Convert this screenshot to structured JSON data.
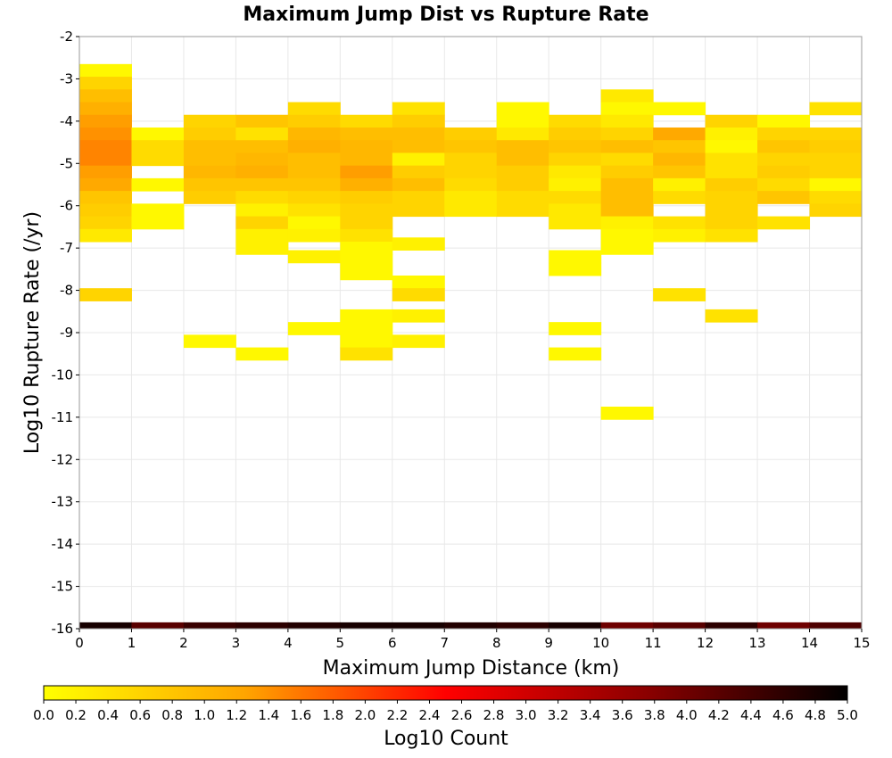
{
  "chart_data": {
    "type": "heatmap",
    "title": "Maximum Jump Dist vs Rupture Rate",
    "xlabel": "Maximum Jump Distance (km)",
    "ylabel": "Log10 Rupture Rate (/yr)",
    "xlim": [
      0,
      15
    ],
    "ylim": [
      -16,
      -2
    ],
    "x_ticks": [
      "0",
      "1",
      "2",
      "3",
      "4",
      "5",
      "6",
      "7",
      "8",
      "9",
      "10",
      "11",
      "12",
      "13",
      "14",
      "15"
    ],
    "y_ticks": [
      "-2",
      "-3",
      "-4",
      "-5",
      "-6",
      "-7",
      "-8",
      "-9",
      "-10",
      "-11",
      "-12",
      "-13",
      "-14",
      "-15",
      "-16"
    ],
    "bin_width_x": 1,
    "bin_height_y": 0.3,
    "grid": true,
    "colorbar": {
      "label": "Log10 Count",
      "range": [
        0,
        5
      ],
      "ticks": [
        "0.0",
        "0.2",
        "0.4",
        "0.6",
        "0.8",
        "1.0",
        "1.2",
        "1.4",
        "1.6",
        "1.8",
        "2.0",
        "2.2",
        "2.4",
        "2.6",
        "2.8",
        "3.0",
        "3.2",
        "3.4",
        "3.6",
        "3.8",
        "4.0",
        "4.2",
        "4.4",
        "4.6",
        "4.8",
        "5.0"
      ],
      "colors": [
        "#ffff00",
        "#ffa500",
        "#ff0000",
        "#8b0000",
        "#000000"
      ],
      "placement": "bottom"
    },
    "cells": [
      {
        "x": 0,
        "y": -2.8,
        "v": 0.1
      },
      {
        "x": 0,
        "y": -3.1,
        "v": 0.6
      },
      {
        "x": 0,
        "y": -3.4,
        "v": 0.9
      },
      {
        "x": 0,
        "y": -3.7,
        "v": 1.1
      },
      {
        "x": 0,
        "y": -4.0,
        "v": 1.3
      },
      {
        "x": 0,
        "y": -4.3,
        "v": 1.4
      },
      {
        "x": 0,
        "y": -4.6,
        "v": 1.5
      },
      {
        "x": 0,
        "y": -4.9,
        "v": 1.5
      },
      {
        "x": 0,
        "y": -5.2,
        "v": 1.3
      },
      {
        "x": 0,
        "y": -5.5,
        "v": 1.2
      },
      {
        "x": 0,
        "y": -5.8,
        "v": 0.8
      },
      {
        "x": 0,
        "y": -6.1,
        "v": 0.7
      },
      {
        "x": 0,
        "y": -6.4,
        "v": 0.6
      },
      {
        "x": 0,
        "y": -6.7,
        "v": 0.3
      },
      {
        "x": 0,
        "y": -8.1,
        "v": 0.6
      },
      {
        "x": 1,
        "y": -4.3,
        "v": 0.1
      },
      {
        "x": 1,
        "y": -4.6,
        "v": 0.5
      },
      {
        "x": 1,
        "y": -4.9,
        "v": 0.5
      },
      {
        "x": 1,
        "y": -5.5,
        "v": 0.1
      },
      {
        "x": 1,
        "y": -6.1,
        "v": 0.1
      },
      {
        "x": 1,
        "y": -6.4,
        "v": 0.1
      },
      {
        "x": 2,
        "y": -4.0,
        "v": 0.6
      },
      {
        "x": 2,
        "y": -4.3,
        "v": 0.7
      },
      {
        "x": 2,
        "y": -4.6,
        "v": 0.9
      },
      {
        "x": 2,
        "y": -4.9,
        "v": 0.9
      },
      {
        "x": 2,
        "y": -5.2,
        "v": 1.0
      },
      {
        "x": 2,
        "y": -5.5,
        "v": 0.8
      },
      {
        "x": 2,
        "y": -5.8,
        "v": 0.7
      },
      {
        "x": 2,
        "y": -9.2,
        "v": 0.1
      },
      {
        "x": 3,
        "y": -4.0,
        "v": 0.8
      },
      {
        "x": 3,
        "y": -4.3,
        "v": 0.4
      },
      {
        "x": 3,
        "y": -4.6,
        "v": 0.9
      },
      {
        "x": 3,
        "y": -4.9,
        "v": 1.0
      },
      {
        "x": 3,
        "y": -5.2,
        "v": 1.1
      },
      {
        "x": 3,
        "y": -5.5,
        "v": 0.8
      },
      {
        "x": 3,
        "y": -5.8,
        "v": 0.5
      },
      {
        "x": 3,
        "y": -6.1,
        "v": 0.2
      },
      {
        "x": 3,
        "y": -6.4,
        "v": 0.6
      },
      {
        "x": 3,
        "y": -6.7,
        "v": 0.2
      },
      {
        "x": 3,
        "y": -7.0,
        "v": 0.2
      },
      {
        "x": 3,
        "y": -9.5,
        "v": 0.1
      },
      {
        "x": 4,
        "y": -3.7,
        "v": 0.5
      },
      {
        "x": 4,
        "y": -4.0,
        "v": 0.7
      },
      {
        "x": 4,
        "y": -4.3,
        "v": 1.0
      },
      {
        "x": 4,
        "y": -4.6,
        "v": 1.1
      },
      {
        "x": 4,
        "y": -4.9,
        "v": 0.9
      },
      {
        "x": 4,
        "y": -5.2,
        "v": 0.9
      },
      {
        "x": 4,
        "y": -5.5,
        "v": 0.8
      },
      {
        "x": 4,
        "y": -5.8,
        "v": 0.6
      },
      {
        "x": 4,
        "y": -6.1,
        "v": 0.4
      },
      {
        "x": 4,
        "y": -6.4,
        "v": 0.1
      },
      {
        "x": 4,
        "y": -6.7,
        "v": 0.2
      },
      {
        "x": 4,
        "y": -7.2,
        "v": 0.2
      },
      {
        "x": 4,
        "y": -8.9,
        "v": 0.1
      },
      {
        "x": 5,
        "y": -4.0,
        "v": 0.5
      },
      {
        "x": 5,
        "y": -4.3,
        "v": 0.9
      },
      {
        "x": 5,
        "y": -4.6,
        "v": 1.0
      },
      {
        "x": 5,
        "y": -4.9,
        "v": 1.0
      },
      {
        "x": 5,
        "y": -5.2,
        "v": 1.3
      },
      {
        "x": 5,
        "y": -5.5,
        "v": 1.1
      },
      {
        "x": 5,
        "y": -5.8,
        "v": 0.7
      },
      {
        "x": 5,
        "y": -6.1,
        "v": 0.6
      },
      {
        "x": 5,
        "y": -6.4,
        "v": 0.6
      },
      {
        "x": 5,
        "y": -6.7,
        "v": 0.4
      },
      {
        "x": 5,
        "y": -7.0,
        "v": 0.1
      },
      {
        "x": 5,
        "y": -7.3,
        "v": 0.1
      },
      {
        "x": 5,
        "y": -7.6,
        "v": 0.1
      },
      {
        "x": 5,
        "y": -8.6,
        "v": 0.1
      },
      {
        "x": 5,
        "y": -8.9,
        "v": 0.1
      },
      {
        "x": 5,
        "y": -9.2,
        "v": 0.1
      },
      {
        "x": 5,
        "y": -9.5,
        "v": 0.4
      },
      {
        "x": 6,
        "y": -3.7,
        "v": 0.4
      },
      {
        "x": 6,
        "y": -4.0,
        "v": 0.7
      },
      {
        "x": 6,
        "y": -4.3,
        "v": 0.9
      },
      {
        "x": 6,
        "y": -4.6,
        "v": 0.9
      },
      {
        "x": 6,
        "y": -4.9,
        "v": 0.2
      },
      {
        "x": 6,
        "y": -5.2,
        "v": 0.7
      },
      {
        "x": 6,
        "y": -5.5,
        "v": 0.9
      },
      {
        "x": 6,
        "y": -5.8,
        "v": 0.6
      },
      {
        "x": 6,
        "y": -6.1,
        "v": 0.6
      },
      {
        "x": 6,
        "y": -6.9,
        "v": 0.2
      },
      {
        "x": 6,
        "y": -7.8,
        "v": 0.1
      },
      {
        "x": 6,
        "y": -8.1,
        "v": 0.5
      },
      {
        "x": 6,
        "y": -8.6,
        "v": 0.2
      },
      {
        "x": 6,
        "y": -9.2,
        "v": 0.2
      },
      {
        "x": 7,
        "y": -4.3,
        "v": 0.7
      },
      {
        "x": 7,
        "y": -4.6,
        "v": 0.8
      },
      {
        "x": 7,
        "y": -4.9,
        "v": 0.6
      },
      {
        "x": 7,
        "y": -5.2,
        "v": 0.6
      },
      {
        "x": 7,
        "y": -5.5,
        "v": 0.5
      },
      {
        "x": 7,
        "y": -5.8,
        "v": 0.3
      },
      {
        "x": 7,
        "y": -6.1,
        "v": 0.3
      },
      {
        "x": 8,
        "y": -3.7,
        "v": 0.1
      },
      {
        "x": 8,
        "y": -4.0,
        "v": 0.1
      },
      {
        "x": 8,
        "y": -4.3,
        "v": 0.3
      },
      {
        "x": 8,
        "y": -4.6,
        "v": 0.9
      },
      {
        "x": 8,
        "y": -4.9,
        "v": 0.9
      },
      {
        "x": 8,
        "y": -5.2,
        "v": 0.7
      },
      {
        "x": 8,
        "y": -5.5,
        "v": 0.7
      },
      {
        "x": 8,
        "y": -5.8,
        "v": 0.5
      },
      {
        "x": 8,
        "y": -6.1,
        "v": 0.5
      },
      {
        "x": 9,
        "y": -4.0,
        "v": 0.5
      },
      {
        "x": 9,
        "y": -4.3,
        "v": 0.7
      },
      {
        "x": 9,
        "y": -4.6,
        "v": 0.8
      },
      {
        "x": 9,
        "y": -4.9,
        "v": 0.6
      },
      {
        "x": 9,
        "y": -5.2,
        "v": 0.3
      },
      {
        "x": 9,
        "y": -5.5,
        "v": 0.2
      },
      {
        "x": 9,
        "y": -5.8,
        "v": 0.5
      },
      {
        "x": 9,
        "y": -6.1,
        "v": 0.3
      },
      {
        "x": 9,
        "y": -6.4,
        "v": 0.3
      },
      {
        "x": 9,
        "y": -7.2,
        "v": 0.1
      },
      {
        "x": 9,
        "y": -7.5,
        "v": 0.1
      },
      {
        "x": 9,
        "y": -8.9,
        "v": 0.1
      },
      {
        "x": 9,
        "y": -9.5,
        "v": 0.1
      },
      {
        "x": 10,
        "y": -3.4,
        "v": 0.3
      },
      {
        "x": 10,
        "y": -3.7,
        "v": 0.1
      },
      {
        "x": 10,
        "y": -4.0,
        "v": 0.3
      },
      {
        "x": 10,
        "y": -4.3,
        "v": 0.6
      },
      {
        "x": 10,
        "y": -4.6,
        "v": 0.9
      },
      {
        "x": 10,
        "y": -4.9,
        "v": 0.5
      },
      {
        "x": 10,
        "y": -5.2,
        "v": 0.7
      },
      {
        "x": 10,
        "y": -5.5,
        "v": 0.9
      },
      {
        "x": 10,
        "y": -5.8,
        "v": 0.9
      },
      {
        "x": 10,
        "y": -6.1,
        "v": 0.9
      },
      {
        "x": 10,
        "y": -6.4,
        "v": 0.2
      },
      {
        "x": 10,
        "y": -6.7,
        "v": 0.1
      },
      {
        "x": 10,
        "y": -7.0,
        "v": 0.1
      },
      {
        "x": 10,
        "y": -10.9,
        "v": 0.1
      },
      {
        "x": 11,
        "y": -3.7,
        "v": 0.1
      },
      {
        "x": 11,
        "y": -4.3,
        "v": 1.2
      },
      {
        "x": 11,
        "y": -4.6,
        "v": 0.8
      },
      {
        "x": 11,
        "y": -4.9,
        "v": 1.0
      },
      {
        "x": 11,
        "y": -5.2,
        "v": 0.8
      },
      {
        "x": 11,
        "y": -5.5,
        "v": 0.2
      },
      {
        "x": 11,
        "y": -5.8,
        "v": 0.5
      },
      {
        "x": 11,
        "y": -6.4,
        "v": 0.4
      },
      {
        "x": 11,
        "y": -6.7,
        "v": 0.2
      },
      {
        "x": 11,
        "y": -8.1,
        "v": 0.4
      },
      {
        "x": 12,
        "y": -4.0,
        "v": 0.6
      },
      {
        "x": 12,
        "y": -4.3,
        "v": 0.2
      },
      {
        "x": 12,
        "y": -4.6,
        "v": 0.1
      },
      {
        "x": 12,
        "y": -4.9,
        "v": 0.4
      },
      {
        "x": 12,
        "y": -5.2,
        "v": 0.4
      },
      {
        "x": 12,
        "y": -5.5,
        "v": 0.7
      },
      {
        "x": 12,
        "y": -5.8,
        "v": 0.6
      },
      {
        "x": 12,
        "y": -6.1,
        "v": 0.6
      },
      {
        "x": 12,
        "y": -6.4,
        "v": 0.6
      },
      {
        "x": 12,
        "y": -6.7,
        "v": 0.4
      },
      {
        "x": 12,
        "y": -8.6,
        "v": 0.4
      },
      {
        "x": 13,
        "y": -4.0,
        "v": 0.1
      },
      {
        "x": 13,
        "y": -4.3,
        "v": 0.6
      },
      {
        "x": 13,
        "y": -4.6,
        "v": 0.8
      },
      {
        "x": 13,
        "y": -4.9,
        "v": 0.6
      },
      {
        "x": 13,
        "y": -5.2,
        "v": 0.7
      },
      {
        "x": 13,
        "y": -5.5,
        "v": 0.5
      },
      {
        "x": 13,
        "y": -5.8,
        "v": 0.8
      },
      {
        "x": 13,
        "y": -6.4,
        "v": 0.4
      },
      {
        "x": 14,
        "y": -3.7,
        "v": 0.4
      },
      {
        "x": 14,
        "y": -4.3,
        "v": 0.6
      },
      {
        "x": 14,
        "y": -4.6,
        "v": 0.7
      },
      {
        "x": 14,
        "y": -4.9,
        "v": 0.6
      },
      {
        "x": 14,
        "y": -5.2,
        "v": 0.6
      },
      {
        "x": 14,
        "y": -5.5,
        "v": 0.1
      },
      {
        "x": 14,
        "y": -5.8,
        "v": 0.5
      },
      {
        "x": 14,
        "y": -6.1,
        "v": 0.6
      }
    ],
    "bottom_row": {
      "y": -16,
      "values": [
        4.8,
        4.2,
        4.5,
        4.6,
        4.7,
        4.8,
        4.8,
        4.7,
        4.6,
        4.8,
        4.0,
        4.2,
        4.6,
        4.0,
        4.3
      ]
    }
  }
}
